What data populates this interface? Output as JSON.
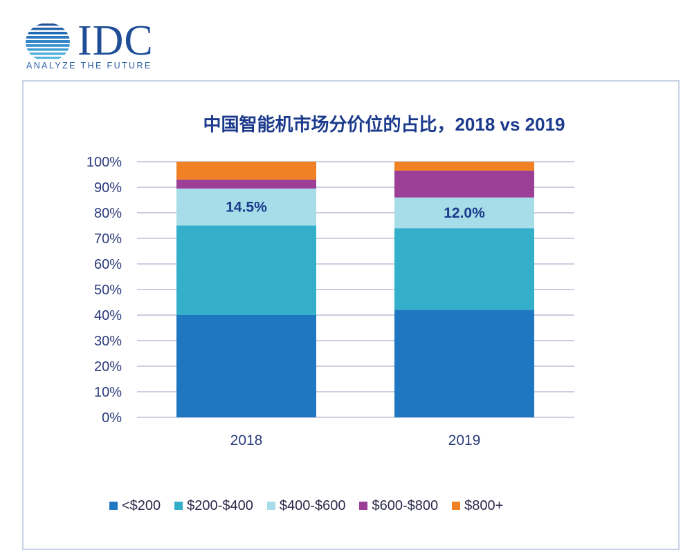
{
  "logo": {
    "wordmark": "IDC",
    "tagline": "ANALYZE THE FUTURE"
  },
  "chart_data": {
    "type": "bar",
    "stacked": true,
    "title": "中国智能机市场分价位的占比，2018 vs 2019",
    "xlabel": "",
    "ylabel": "",
    "ylim": [
      0,
      100
    ],
    "y_ticks": [
      "0%",
      "10%",
      "20%",
      "30%",
      "40%",
      "50%",
      "60%",
      "70%",
      "80%",
      "90%",
      "100%"
    ],
    "grid": true,
    "legend_position": "bottom",
    "categories": [
      "2018",
      "2019"
    ],
    "series": [
      {
        "name": "<$200",
        "color": "#1f77c2",
        "values": [
          40.0,
          42.0
        ]
      },
      {
        "name": "$200-$400",
        "color": "#33afc9",
        "values": [
          35.0,
          32.0
        ]
      },
      {
        "name": "$400-$600",
        "color": "#a6dde8",
        "values": [
          14.5,
          12.0
        ]
      },
      {
        "name": "$600-$800",
        "color": "#9b3f97",
        "values": [
          3.5,
          10.5
        ]
      },
      {
        "name": "$800+",
        "color": "#f08124",
        "values": [
          7.0,
          3.5
        ]
      }
    ],
    "annotations": [
      {
        "category": "2018",
        "series": "$400-$600",
        "text": "14.5%"
      },
      {
        "category": "2019",
        "series": "$400-$600",
        "text": "12.0%"
      }
    ]
  }
}
